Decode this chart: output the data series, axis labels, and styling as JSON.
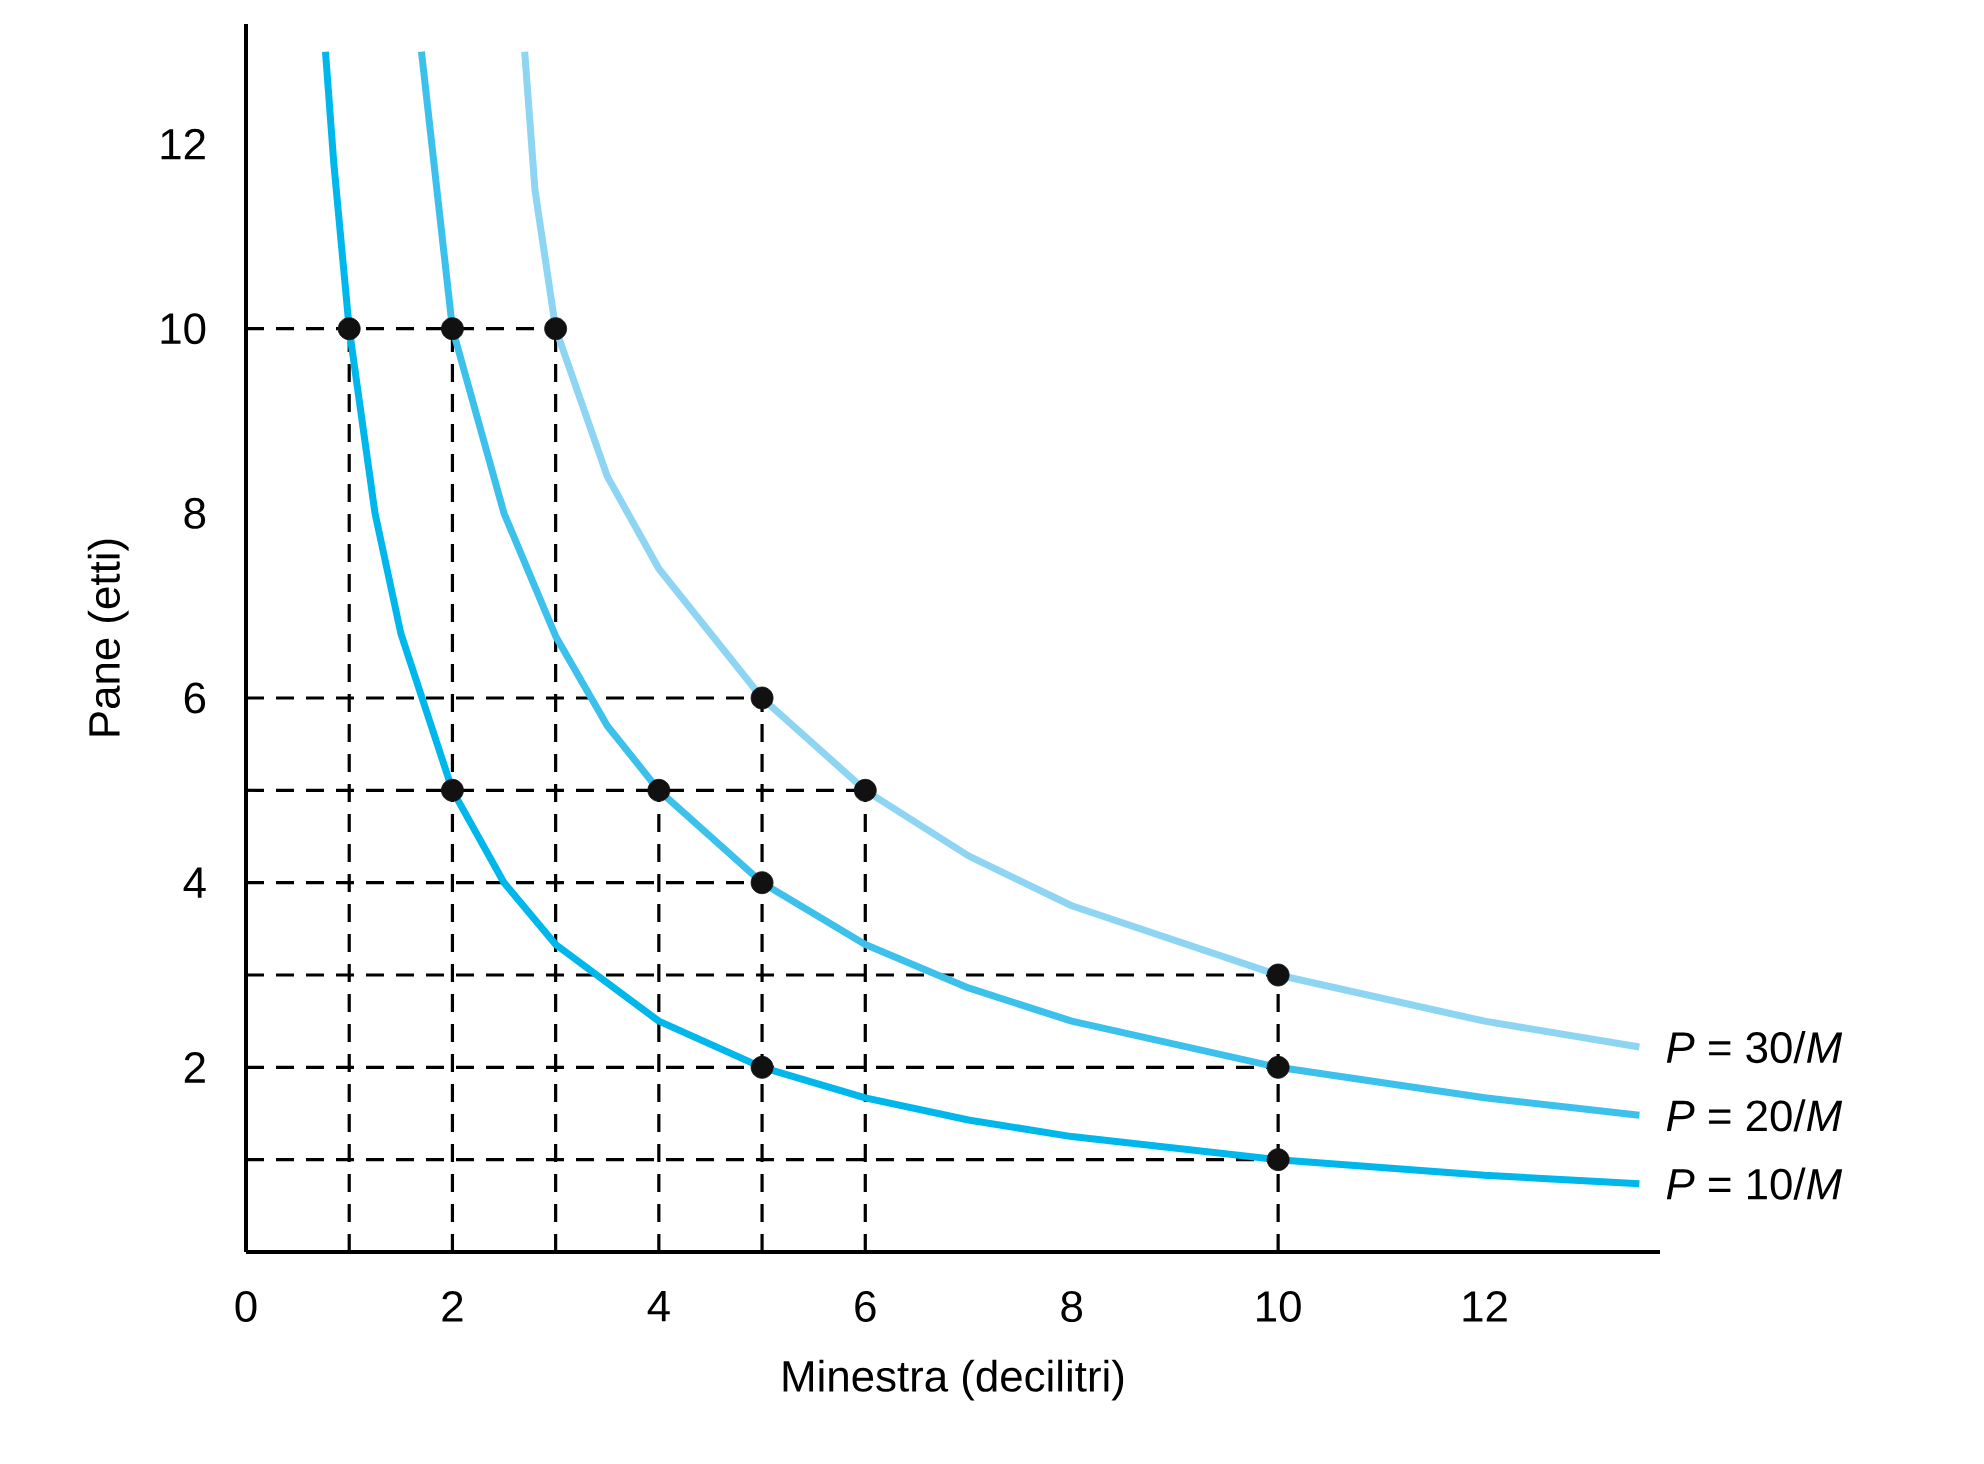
{
  "chart_data": {
    "type": "line",
    "xlabel": "Minestra (decilitri)",
    "ylabel": "Pane (etti)",
    "xlim": [
      0,
      13.7
    ],
    "ylim": [
      0,
      13.3
    ],
    "xticks": [
      0,
      2,
      4,
      6,
      8,
      10,
      12
    ],
    "yticks": [
      2,
      4,
      6,
      8,
      10,
      12
    ],
    "series": [
      {
        "line_style": "dashed",
        "color": "#000000",
        "marker": "none",
        "x": [
          0,
          3
        ],
        "values": [
          10,
          10
        ]
      },
      {
        "line_style": "dashed",
        "color": "#000000",
        "marker": "none",
        "x": [
          0,
          5
        ],
        "values": [
          6,
          6
        ]
      },
      {
        "line_style": "dashed",
        "color": "#000000",
        "marker": "none",
        "x": [
          0,
          6
        ],
        "values": [
          5,
          5
        ]
      },
      {
        "line_style": "dashed",
        "color": "#000000",
        "marker": "none",
        "x": [
          0,
          5
        ],
        "values": [
          4,
          4
        ]
      },
      {
        "line_style": "dashed",
        "color": "#000000",
        "marker": "none",
        "x": [
          0,
          10
        ],
        "values": [
          3,
          3
        ]
      },
      {
        "line_style": "dashed",
        "color": "#000000",
        "marker": "none",
        "x": [
          0,
          10
        ],
        "values": [
          2,
          2
        ]
      },
      {
        "line_style": "dashed",
        "color": "#000000",
        "marker": "none",
        "x": [
          0,
          10
        ],
        "values": [
          1,
          1
        ]
      },
      {
        "line_style": "dashed",
        "color": "#000000",
        "marker": "none",
        "x": [
          1,
          1
        ],
        "values": [
          0,
          10
        ]
      },
      {
        "line_style": "dashed",
        "color": "#000000",
        "marker": "none",
        "x": [
          2,
          2
        ],
        "values": [
          0,
          10
        ]
      },
      {
        "line_style": "dashed",
        "color": "#000000",
        "marker": "none",
        "x": [
          3,
          3
        ],
        "values": [
          0,
          10
        ]
      },
      {
        "line_style": "dashed",
        "color": "#000000",
        "marker": "none",
        "x": [
          4,
          4
        ],
        "values": [
          0,
          5
        ]
      },
      {
        "line_style": "dashed",
        "color": "#000000",
        "marker": "none",
        "x": [
          5,
          5
        ],
        "values": [
          0,
          6
        ]
      },
      {
        "line_style": "dashed",
        "color": "#000000",
        "marker": "none",
        "x": [
          6,
          6
        ],
        "values": [
          0,
          5
        ]
      },
      {
        "line_style": "dashed",
        "color": "#000000",
        "marker": "none",
        "x": [
          10,
          10
        ],
        "values": [
          0,
          3
        ]
      },
      {
        "name": "*P* = 10/*M*",
        "color": "#00b7eb",
        "marker": "none",
        "x": [
          0.77,
          0.85,
          1,
          1.25,
          1.5,
          2,
          2.5,
          3,
          4,
          5,
          6,
          7,
          8,
          10,
          12,
          13.5
        ],
        "values": [
          13,
          11.8,
          10,
          8,
          6.7,
          5,
          4,
          3.33,
          2.5,
          2,
          1.67,
          1.43,
          1.25,
          1,
          0.83,
          0.74
        ]
      },
      {
        "name": "*P* = 20/*M*",
        "color": "#3cc0ec",
        "marker": "none",
        "x": [
          1.7,
          1.85,
          2,
          2.5,
          3,
          3.5,
          4,
          5,
          6,
          7,
          8,
          10,
          12,
          13.5
        ],
        "values": [
          13,
          11.5,
          10,
          8,
          6.67,
          5.7,
          5,
          4,
          3.33,
          2.86,
          2.5,
          2,
          1.67,
          1.48
        ]
      },
      {
        "name": "*P* = 30/*M*",
        "color": "#8dd5f2",
        "marker": "none",
        "x": [
          2.7,
          2.8,
          3,
          3.5,
          4,
          5,
          6,
          7,
          8,
          10,
          12,
          13.5
        ],
        "values": [
          13,
          11.5,
          10,
          8.4,
          7.4,
          6,
          5,
          4.29,
          3.75,
          3,
          2.5,
          2.22
        ]
      },
      {
        "type": "scatter",
        "color": "#111111",
        "marker": "circle",
        "x": [
          1,
          2,
          3,
          5,
          6,
          2,
          4,
          5,
          5,
          10,
          10,
          10
        ],
        "values": [
          10,
          10,
          10,
          6,
          5,
          5,
          5,
          4,
          2,
          3,
          2,
          1
        ]
      }
    ]
  }
}
